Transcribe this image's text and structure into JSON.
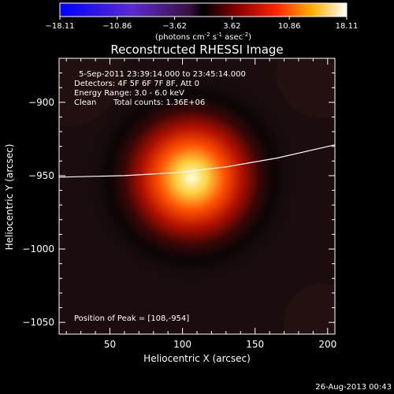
{
  "chart_data": {
    "type": "heatmap",
    "title": "Reconstructed RHESSI Image",
    "xlabel": "Heliocentric X (arcsec)",
    "ylabel": "Heliocentric Y (arcsec)",
    "xlim": [
      15,
      205
    ],
    "ylim": [
      -1058,
      -870
    ],
    "x_ticks": [
      50,
      100,
      150,
      200
    ],
    "y_ticks": [
      -900,
      -950,
      -1000,
      -1050
    ],
    "colorbar": {
      "ticks": [
        "-18.11",
        "-10.86",
        "-3.62",
        "3.62",
        "10.86",
        "18.11"
      ],
      "min": -18.11,
      "max": 18.11,
      "unit_text": "(photons cm",
      "unit_exp1": "-2",
      "unit_mid": " s",
      "unit_exp2": "-1",
      "unit_mid2": " asec",
      "unit_exp3": "-2",
      "unit_end": ")",
      "colormap": "rhessi-hot"
    },
    "annotations": {
      "time_range": "5-Sep-2011 23:39:14.000 to 23:45:14.000",
      "detectors": "Detectors: 4F 5F 6F 7F 8F, Att 0",
      "energy": "Energy Range: 3.0 - 6.0 keV",
      "clean": "Clean",
      "total_counts": "Total counts: 1.36E+06",
      "peak": "Position of Peak = [108,-954]"
    },
    "peak": {
      "x": 108,
      "y": -954,
      "value": 18.11
    },
    "limb_curve": [
      {
        "x": 15,
        "y": -951
      },
      {
        "x": 60,
        "y": -950
      },
      {
        "x": 95,
        "y": -948
      },
      {
        "x": 130,
        "y": -944
      },
      {
        "x": 165,
        "y": -938
      },
      {
        "x": 205,
        "y": -929
      }
    ],
    "footer": "26-Aug-2013 00:43"
  }
}
